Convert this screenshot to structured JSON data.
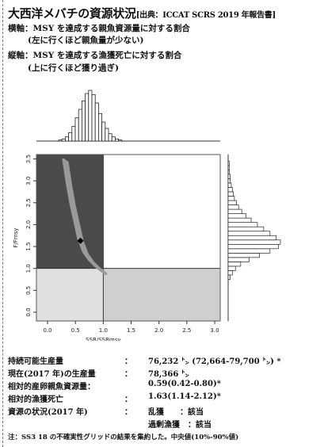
{
  "header": {
    "title": "大西洋メバチの資源状況",
    "source": "[出典：ICCAT SCRS 2019 年報告書]",
    "x_desc": "横軸：MSY を達成する親魚資源量に対する割合",
    "x_desc2": "(左に行くほど親魚量が少ない)",
    "y_desc": "縦軸：MSY を達成する漁獲死亡に対する割合",
    "y_desc2": "(上に行くほど獲り過ぎ)"
  },
  "chart_data": {
    "type": "scatter",
    "xlabel": "SSB/SSBmsy",
    "ylabel": "F/Fmsy",
    "xlim": [
      -0.2,
      3.1
    ],
    "ylim": [
      -0.2,
      3.6
    ],
    "xticks": [
      "0.0",
      "0.5",
      "1.0",
      "1.5",
      "2.0",
      "2.5",
      "3.0"
    ],
    "yticks": [
      "0.0",
      "0.5",
      "1.0",
      "1.5",
      "2.0",
      "2.5",
      "3.0",
      "3.5"
    ],
    "reference_lines": {
      "x": 1.0,
      "y": 1.0
    },
    "quadrant_colors": {
      "overfished_overfishing": "#4a4a4a",
      "overfishing_only": "#ffffff",
      "overfished_only": "#e0e0e0",
      "healthy": "#cfcfcf"
    },
    "point_color": "#9a9a9a",
    "median_point": {
      "x": 0.59,
      "y": 1.63
    },
    "cloud_curve": [
      [
        0.32,
        3.45
      ],
      [
        0.38,
        2.95
      ],
      [
        0.45,
        2.45
      ],
      [
        0.53,
        2.0
      ],
      [
        0.59,
        1.65
      ],
      [
        0.68,
        1.35
      ],
      [
        0.78,
        1.17
      ],
      [
        0.9,
        1.02
      ],
      [
        1.02,
        0.9
      ]
    ],
    "ssb_distribution": [
      1,
      2,
      4,
      8,
      14,
      22,
      30,
      38,
      45,
      48,
      44,
      36,
      26,
      18,
      12,
      7,
      4,
      2,
      1
    ],
    "f_distribution": [
      {
        "y": 0.8,
        "n": 2
      },
      {
        "y": 0.9,
        "n": 4
      },
      {
        "y": 1.0,
        "n": 7
      },
      {
        "y": 1.1,
        "n": 12
      },
      {
        "y": 1.2,
        "n": 20
      },
      {
        "y": 1.3,
        "n": 30
      },
      {
        "y": 1.4,
        "n": 40
      },
      {
        "y": 1.5,
        "n": 48
      },
      {
        "y": 1.6,
        "n": 50
      },
      {
        "y": 1.7,
        "n": 46
      },
      {
        "y": 1.8,
        "n": 40
      },
      {
        "y": 1.9,
        "n": 34
      },
      {
        "y": 2.0,
        "n": 28
      },
      {
        "y": 2.1,
        "n": 22
      },
      {
        "y": 2.2,
        "n": 17
      },
      {
        "y": 2.3,
        "n": 13
      },
      {
        "y": 2.4,
        "n": 10
      },
      {
        "y": 2.5,
        "n": 8
      },
      {
        "y": 2.6,
        "n": 6
      },
      {
        "y": 2.7,
        "n": 5
      },
      {
        "y": 2.8,
        "n": 4
      },
      {
        "y": 2.9,
        "n": 3
      },
      {
        "y": 3.0,
        "n": 2
      },
      {
        "y": 3.1,
        "n": 2
      },
      {
        "y": 3.2,
        "n": 1
      },
      {
        "y": 3.3,
        "n": 1
      },
      {
        "y": 3.4,
        "n": 1
      }
    ]
  },
  "stats": [
    {
      "label": "持続可能生産量",
      "colon": "：",
      "value": "76,232 ㌧ (72,664-79,700 ㌧) *"
    },
    {
      "label": "現在(2017 年)の生産量",
      "colon": "：",
      "value": "78,366 ㌧"
    },
    {
      "label": "相対的産卵親魚資源量：",
      "colon": "",
      "value": "0.59(0.42-0.80)*"
    },
    {
      "label": "相対的漁獲死亡",
      "colon": "：",
      "value": "1.63(1.14-2.12)*"
    },
    {
      "label": "資源の状況(2017 年)",
      "colon": "：",
      "value": "乱獲　　：該当"
    },
    {
      "label": "",
      "colon": "",
      "value": "過剰漁獲　：該当"
    }
  ],
  "footnote": "注：SS3 18 の不確実性グリッドの結果を集約した。中央値(10%-90%値)"
}
